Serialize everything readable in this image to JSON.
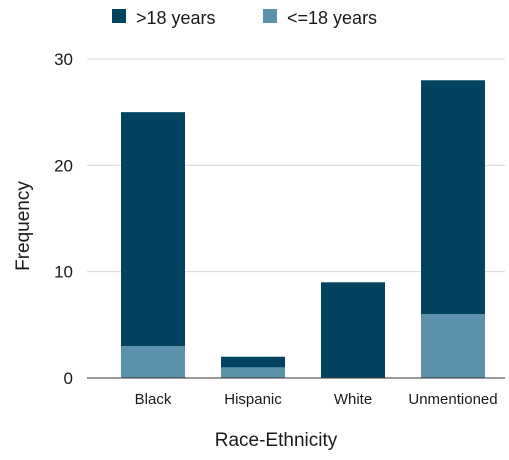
{
  "chart_data": {
    "type": "bar",
    "stacked": true,
    "categories": [
      "Black",
      "Hispanic",
      "White",
      "Unmentioned"
    ],
    "series": [
      {
        "name": "<=18 years",
        "values": [
          3,
          1,
          0,
          6
        ],
        "color": "#5b91ab"
      },
      {
        "name": ">18 years",
        "values": [
          22,
          1,
          9,
          22
        ],
        "color": "#02445f"
      }
    ],
    "legend_order": [
      1,
      0
    ],
    "legend_position": "top",
    "xlabel": "Race-Ethnicity",
    "ylabel": "Frequency",
    "ylim": [
      0,
      30
    ],
    "yticks": [
      0,
      10,
      20,
      30
    ],
    "grid": true,
    "gridline_color": "#d9d9d9",
    "baseline_color": "#333333"
  }
}
